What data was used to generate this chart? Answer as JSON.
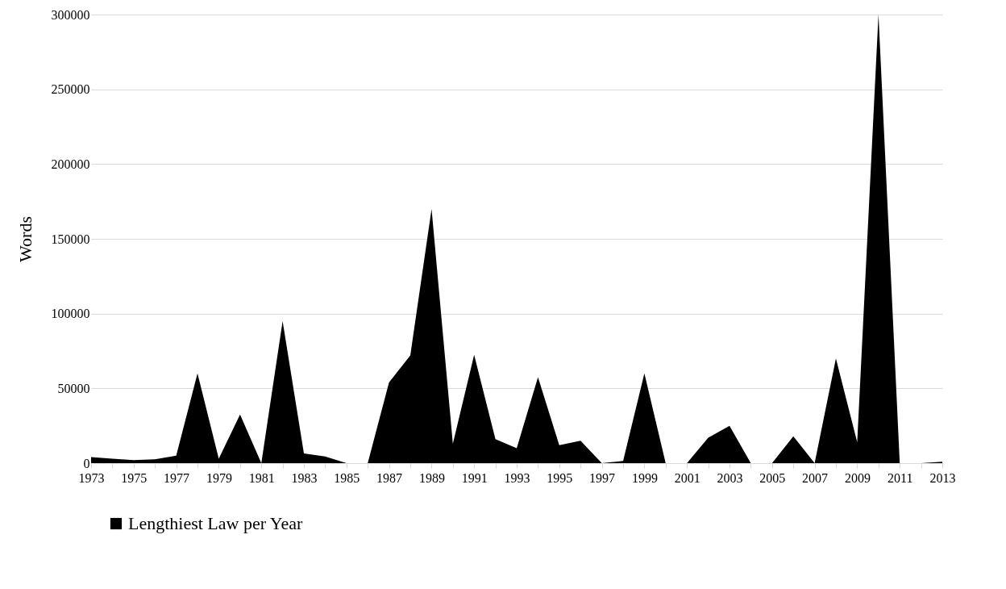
{
  "chart_data": {
    "type": "area",
    "ylabel": "Words",
    "categories": [
      "1973",
      null,
      "1975",
      null,
      "1977",
      null,
      "1979",
      null,
      "1981",
      null,
      "1983",
      null,
      "1985",
      null,
      "1987",
      null,
      "1989",
      null,
      "1991",
      null,
      "1993",
      null,
      "1995",
      null,
      "1997",
      null,
      "1999",
      null,
      "2001",
      null,
      "2003",
      null,
      "2005",
      null,
      "2007",
      null,
      "2009",
      null,
      "2011",
      null,
      "2013"
    ],
    "series": [
      {
        "name": "Lengthiest Law per Year",
        "color": "#000000",
        "values": [
          4000,
          3000,
          2000,
          2500,
          5000,
          60000,
          3000,
          32500,
          0,
          95000,
          6500,
          4500,
          0,
          0,
          54000,
          72000,
          170000,
          13000,
          72500,
          16000,
          10000,
          57500,
          12000,
          15000,
          0,
          1500,
          60000,
          0,
          0,
          17000,
          25000,
          0,
          0,
          18000,
          0,
          70000,
          14000,
          300000,
          0,
          0,
          1000
        ]
      }
    ],
    "ylim": [
      0,
      300000
    ],
    "yticks": [
      0,
      50000,
      100000,
      150000,
      200000,
      250000,
      300000
    ],
    "grid": "y",
    "legend": "bottom"
  }
}
